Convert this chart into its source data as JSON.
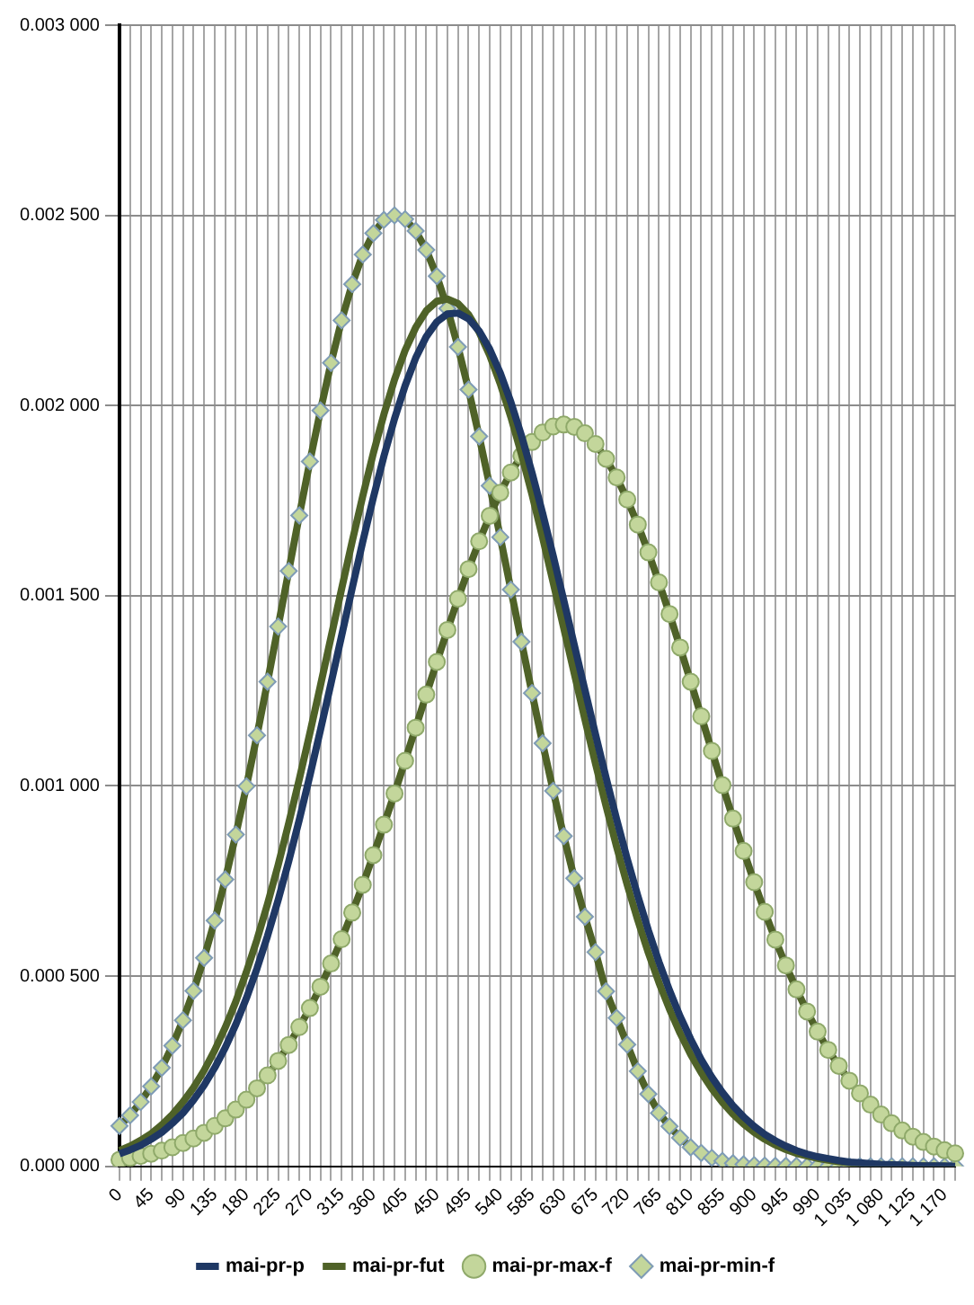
{
  "chart_data": {
    "type": "line",
    "categories": [
      "0",
      null,
      null,
      "45",
      null,
      null,
      "90",
      null,
      null,
      "135",
      null,
      null,
      "180",
      null,
      null,
      "225",
      null,
      null,
      "270",
      null,
      null,
      "315",
      null,
      null,
      "360",
      null,
      null,
      "405",
      null,
      null,
      "450",
      null,
      null,
      "495",
      null,
      null,
      "540",
      null,
      null,
      "585",
      null,
      null,
      "630",
      null,
      null,
      "675",
      null,
      null,
      "720",
      null,
      null,
      "765",
      null,
      null,
      "810",
      null,
      null,
      "855",
      null,
      null,
      "900",
      null,
      null,
      "945",
      null,
      null,
      "990",
      null,
      null,
      "1 035",
      null,
      null,
      "1 080",
      null,
      null,
      "1 125",
      null,
      null,
      "1 170",
      null
    ],
    "ylim": [
      0,
      0.003
    ],
    "yticks": [
      {
        "value": 0,
        "label": "0.000 000"
      },
      {
        "value": 0.0005,
        "label": "0.000 500"
      },
      {
        "value": 0.001,
        "label": "0.001 000"
      },
      {
        "value": 0.0015,
        "label": "0.001 500"
      },
      {
        "value": 0.002,
        "label": "0.002 000"
      },
      {
        "value": 0.0025,
        "label": "0.002 500"
      },
      {
        "value": 0.003,
        "label": "0.003 000"
      }
    ],
    "grid": true,
    "legend": "bottom",
    "series": [
      {
        "name": "mai-pr-p",
        "color": "#1f3864",
        "marker": "none",
        "values": [
          3.3e-05,
          4.3e-05,
          5.5e-05,
          7.1e-05,
          8.9e-05,
          0.000113,
          0.00014,
          0.000174,
          0.000213,
          0.000259,
          0.000312,
          0.000373,
          0.000442,
          0.00052,
          0.000606,
          0.0007,
          0.000802,
          0.000911,
          0.001027,
          0.001147,
          0.00127,
          0.001395,
          0.00152,
          0.001642,
          0.001758,
          0.001867,
          0.001965,
          0.002052,
          0.002125,
          0.002181,
          0.00222,
          0.002241,
          0.002243,
          0.002228,
          0.002196,
          0.002148,
          0.002085,
          0.002009,
          0.001921,
          0.001823,
          0.001717,
          0.001605,
          0.001488,
          0.00137,
          0.001252,
          0.001135,
          0.001021,
          0.000912,
          0.000808,
          0.000711,
          0.00062,
          0.000537,
          0.000462,
          0.000394,
          0.000334,
          0.00028,
          0.000234,
          0.000194,
          0.000159,
          0.00013,
          0.000105,
          8.4e-05,
          6.7e-05,
          5.3e-05,
          4.1e-05,
          3.2e-05,
          2.5e-05,
          2e-05,
          1.5e-05,
          1.1e-05,
          9e-06,
          7e-06,
          5e-06,
          4e-06,
          3e-06,
          2e-06,
          1e-06,
          1e-06,
          1e-06,
          0
        ]
      },
      {
        "name": "mai-pr-fut",
        "color": "#4f6228",
        "marker": "none",
        "values": [
          4.1e-05,
          5.3e-05,
          6.8e-05,
          8.6e-05,
          0.000109,
          0.000136,
          0.000169,
          0.000207,
          0.000252,
          0.000305,
          0.000365,
          0.000433,
          0.000511,
          0.000596,
          0.00069,
          0.000792,
          0.000902,
          0.001018,
          0.001139,
          0.001264,
          0.001391,
          0.001518,
          0.001643,
          0.001762,
          0.001875,
          0.001977,
          0.002068,
          0.002145,
          0.002205,
          0.002249,
          0.002274,
          0.00228,
          0.002268,
          0.002239,
          0.002193,
          0.002132,
          0.002057,
          0.00197,
          0.001872,
          0.001766,
          0.001653,
          0.001535,
          0.001415,
          0.001295,
          0.001175,
          0.001059,
          0.000947,
          0.00084,
          0.00074,
          0.000647,
          0.000561,
          0.000483,
          0.000413,
          0.00035,
          0.000294,
          0.000246,
          0.000204,
          0.000168,
          0.000137,
          0.000111,
          8.9e-05,
          7.1e-05,
          5.6e-05,
          4.4e-05,
          3.4e-05,
          2.7e-05,
          2.1e-05,
          1.6e-05,
          1.2e-05,
          9e-06,
          7e-06,
          5e-06,
          4e-06,
          3e-06,
          2e-06,
          1e-06,
          1e-06,
          1e-06,
          0,
          0
        ]
      },
      {
        "name": "mai-pr-max-f",
        "color": "#4f6228",
        "marker": "circle",
        "values": [
          1.7e-05,
          2.2e-05,
          2.7e-05,
          3.3e-05,
          4.1e-05,
          5e-05,
          6.1e-05,
          7.3e-05,
          8.8e-05,
          0.000106,
          0.000126,
          0.000149,
          0.000175,
          0.000205,
          0.000239,
          0.000277,
          0.000319,
          0.000366,
          0.000416,
          0.000472,
          0.000533,
          0.000597,
          0.000667,
          0.00074,
          0.000818,
          0.000898,
          0.00098,
          0.001066,
          0.001153,
          0.00124,
          0.001326,
          0.00141,
          0.001492,
          0.00157,
          0.001643,
          0.00171,
          0.001771,
          0.001824,
          0.001868,
          0.001904,
          0.001929,
          0.001945,
          0.00195,
          0.001944,
          0.001927,
          0.001899,
          0.00186,
          0.001811,
          0.001753,
          0.001687,
          0.001614,
          0.001535,
          0.001452,
          0.001364,
          0.001274,
          0.001183,
          0.001092,
          0.001002,
          0.000914,
          0.000829,
          0.000747,
          0.000669,
          0.000596,
          0.000528,
          0.000465,
          0.000407,
          0.000354,
          0.000306,
          0.000264,
          0.000225,
          0.000192,
          0.000162,
          0.000136,
          0.000113,
          9.4e-05,
          7.8e-05,
          6.4e-05,
          5.2e-05,
          4.2e-05,
          3.4e-05
        ]
      },
      {
        "name": "mai-pr-min-f",
        "color": "#4f6228",
        "marker": "diamond",
        "values": [
          0.000106,
          0.000134,
          0.000169,
          0.00021,
          0.000259,
          0.000317,
          0.000384,
          0.000461,
          0.000548,
          0.000646,
          0.000754,
          0.000872,
          0.000999,
          0.001133,
          0.001274,
          0.001419,
          0.001565,
          0.001711,
          0.001853,
          0.001987,
          0.002112,
          0.002224,
          0.002319,
          0.002397,
          0.002453,
          0.002488,
          0.0025,
          0.00249,
          0.002459,
          0.002409,
          0.00234,
          0.002255,
          0.002154,
          0.002042,
          0.001919,
          0.001789,
          0.001654,
          0.001516,
          0.001379,
          0.001244,
          0.001112,
          0.000987,
          0.000868,
          0.000757,
          0.000656,
          0.000563,
          0.00046,
          0.00039,
          0.00032,
          0.00025,
          0.00019,
          0.00014,
          0.000105,
          7.5e-05,
          5e-05,
          3.5e-05,
          2.2e-05,
          1.4e-05,
          8e-06,
          5e-06,
          3e-06,
          2e-06,
          1e-06,
          1e-06,
          1e-06,
          0,
          0,
          0,
          0,
          0,
          0,
          0,
          0,
          0,
          0,
          0,
          0,
          0,
          0,
          0
        ]
      }
    ]
  }
}
